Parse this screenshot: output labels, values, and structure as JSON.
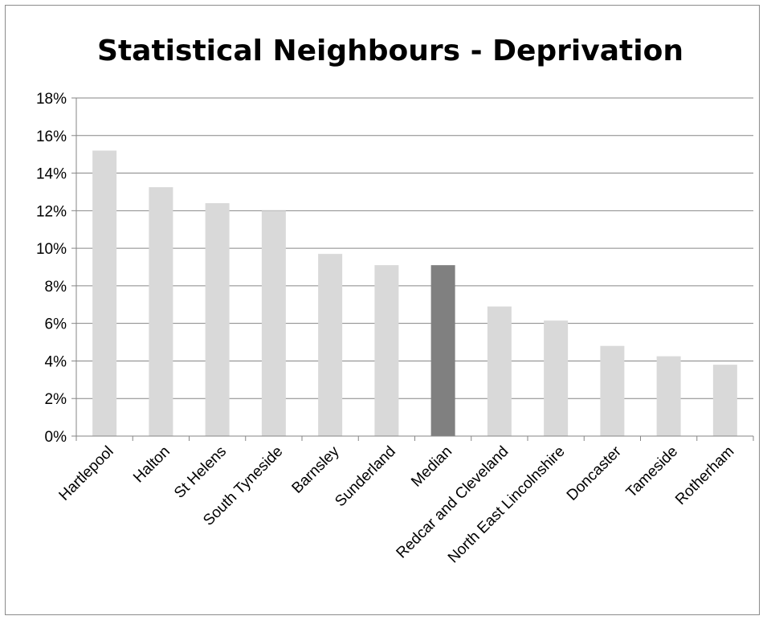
{
  "chart_data": {
    "type": "bar",
    "title": "Statistical Neighbours - Deprivation",
    "xlabel": "",
    "ylabel": "",
    "categories": [
      "Hartlepool",
      "Halton",
      "St Helens",
      "South Tyneside",
      "Barnsley",
      "Sunderland",
      "Median",
      "Redcar and Cleveland",
      "North East Lincolnshire",
      "Doncaster",
      "Tameside",
      "Rotherham"
    ],
    "values": [
      15.2,
      13.25,
      12.4,
      12.0,
      9.7,
      9.1,
      9.1,
      6.9,
      6.15,
      4.8,
      4.25,
      3.8
    ],
    "highlight": "Median",
    "y_ticks": [
      "0%",
      "2%",
      "4%",
      "6%",
      "8%",
      "10%",
      "12%",
      "14%",
      "16%",
      "18%"
    ],
    "ylim": [
      0,
      18
    ],
    "y_unit": "%",
    "grid": true,
    "legend": "none",
    "colors": {
      "bar": "#d9d9d9",
      "highlight_bar": "#808080",
      "gridline": "#868686",
      "axis": "#868686"
    }
  }
}
